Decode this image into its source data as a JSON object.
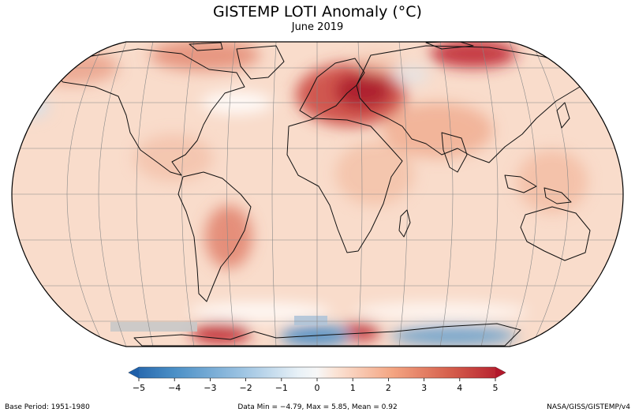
{
  "title": "GISTEMP LOTI Anomaly (°C)",
  "subtitle": "June 2019",
  "colorbar": {
    "ticks": [
      "−5",
      "−4",
      "−3",
      "−2",
      "−1",
      "0",
      "1",
      "2",
      "3",
      "4",
      "5"
    ],
    "min": -5,
    "max": 5,
    "colors": [
      "#1f5fa8",
      "#4a8fc6",
      "#9cc3e2",
      "#dcebf5",
      "#f7f7f7",
      "#fbe0cf",
      "#f4a582",
      "#d6604d",
      "#b2182b"
    ]
  },
  "footer": {
    "base_period": "Base Period: 1951-1980",
    "stats": "Data Min = −4.79, Max = 5.85, Mean = 0.92",
    "source": "NASA/GISS/GISTEMP/v4"
  },
  "stats": {
    "min": -4.79,
    "max": 5.85,
    "mean": 0.92
  }
}
